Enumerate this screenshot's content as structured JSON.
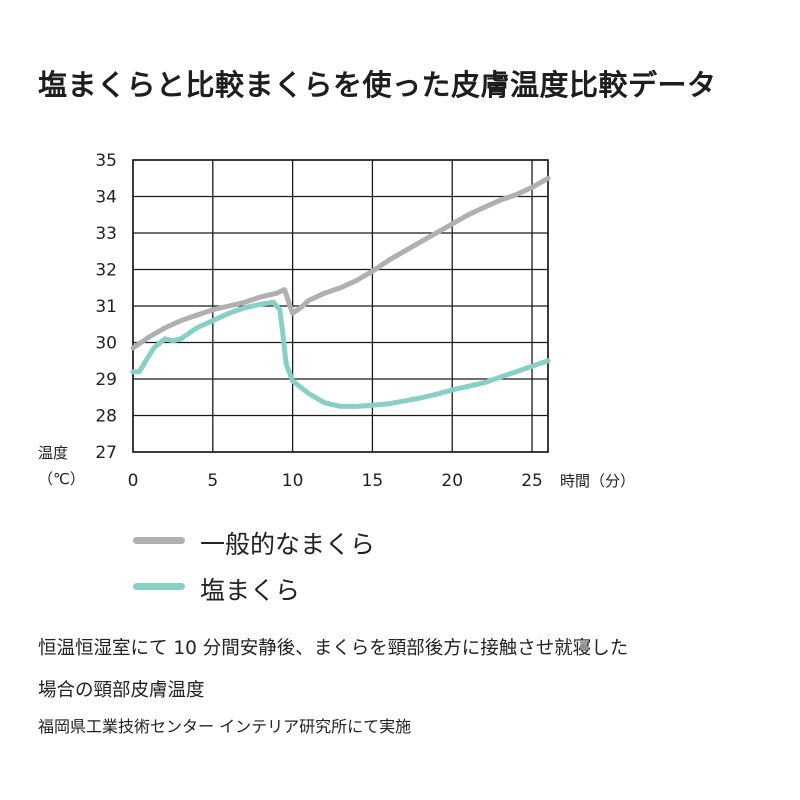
{
  "title": "塩まくらと比較まくらを使った皮膚温度比較データ",
  "chart_data": {
    "type": "line",
    "xlabel": "時間（分）",
    "ylabel": "温度",
    "yunit": "（℃）",
    "xlim": [
      0,
      26
    ],
    "ylim": [
      27,
      35
    ],
    "xticks": [
      "0",
      "5",
      "10",
      "15",
      "20",
      "25"
    ],
    "yticks": [
      "27",
      "28",
      "29",
      "30",
      "31",
      "32",
      "33",
      "34",
      "35"
    ],
    "grid": true,
    "legend_position": "below",
    "series": [
      {
        "name": "一般的なまくら",
        "color": "#b0b0b0",
        "points": [
          [
            0,
            29.85
          ],
          [
            1,
            30.15
          ],
          [
            2,
            30.4
          ],
          [
            3,
            30.6
          ],
          [
            4,
            30.75
          ],
          [
            5,
            30.9
          ],
          [
            6,
            31.0
          ],
          [
            7,
            31.1
          ],
          [
            8,
            31.25
          ],
          [
            9,
            31.35
          ],
          [
            9.5,
            31.45
          ],
          [
            9.8,
            31.05
          ],
          [
            10.0,
            30.8
          ],
          [
            10.5,
            30.95
          ],
          [
            11,
            31.15
          ],
          [
            12,
            31.35
          ],
          [
            13,
            31.5
          ],
          [
            14,
            31.7
          ],
          [
            15,
            31.95
          ],
          [
            16,
            32.25
          ],
          [
            17,
            32.5
          ],
          [
            18,
            32.75
          ],
          [
            19,
            33.0
          ],
          [
            20,
            33.25
          ],
          [
            21,
            33.5
          ],
          [
            22,
            33.7
          ],
          [
            23,
            33.9
          ],
          [
            24,
            34.05
          ],
          [
            25,
            34.25
          ],
          [
            26,
            34.5
          ]
        ]
      },
      {
        "name": "塩まくら",
        "color": "#88d0c6",
        "points": [
          [
            0,
            29.2
          ],
          [
            0.4,
            29.2
          ],
          [
            0.8,
            29.5
          ],
          [
            1.3,
            29.85
          ],
          [
            2,
            30.1
          ],
          [
            2.5,
            30.05
          ],
          [
            3,
            30.1
          ],
          [
            4,
            30.4
          ],
          [
            5,
            30.6
          ],
          [
            6,
            30.8
          ],
          [
            7,
            30.95
          ],
          [
            8,
            31.05
          ],
          [
            8.8,
            31.1
          ],
          [
            9.2,
            30.9
          ],
          [
            9.4,
            30.2
          ],
          [
            9.6,
            29.4
          ],
          [
            10,
            28.95
          ],
          [
            11,
            28.6
          ],
          [
            12,
            28.35
          ],
          [
            13,
            28.25
          ],
          [
            14,
            28.25
          ],
          [
            15,
            28.28
          ],
          [
            16,
            28.32
          ],
          [
            17,
            28.4
          ],
          [
            18,
            28.48
          ],
          [
            19,
            28.58
          ],
          [
            20,
            28.7
          ],
          [
            21,
            28.8
          ],
          [
            22,
            28.9
          ],
          [
            23,
            29.05
          ],
          [
            24,
            29.2
          ],
          [
            25,
            29.35
          ],
          [
            26,
            29.5
          ]
        ]
      }
    ]
  },
  "notes": [
    "恒温恒湿室にて 10 分間安静後、まくらを頸部後方に接触させ就寝した",
    "場合の頸部皮膚温度",
    "福岡県工業技術センター インテリア研究所にて実施"
  ]
}
